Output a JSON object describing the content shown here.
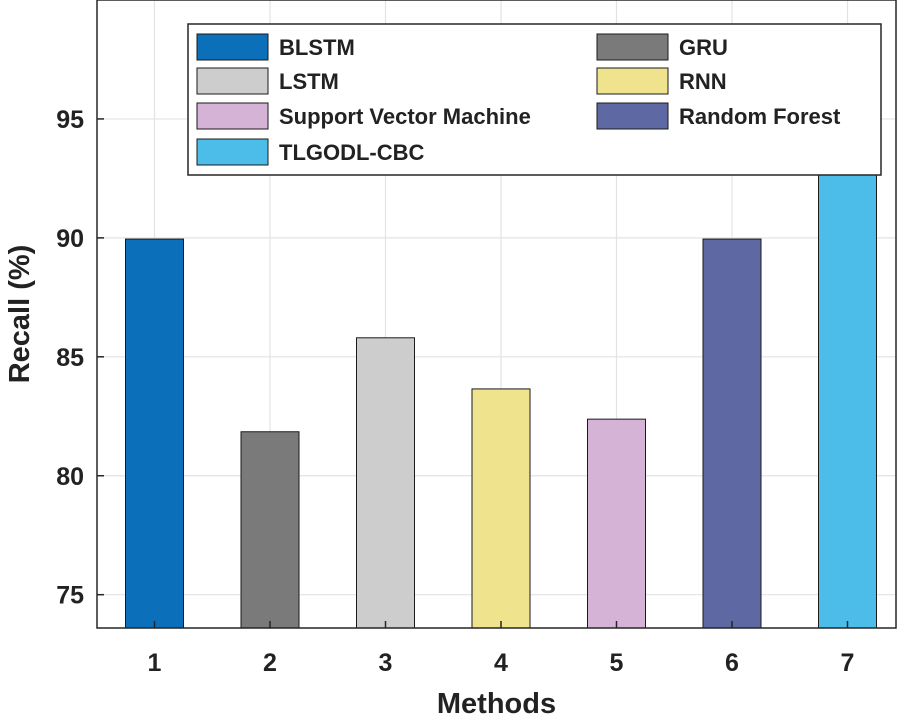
{
  "chart_data": {
    "type": "bar",
    "categories": [
      "1",
      "2",
      "3",
      "4",
      "5",
      "6",
      "7"
    ],
    "values": [
      89.95,
      81.85,
      85.8,
      83.65,
      82.38,
      89.95,
      92.65
    ],
    "bar_colors": [
      "#0b6fba",
      "#7a7a7a",
      "#cdcdcd",
      "#efe38e",
      "#d5b3d6",
      "#5e68a2",
      "#4cbde9"
    ],
    "legend": [
      {
        "label": "BLSTM",
        "color": "#0b6fba"
      },
      {
        "label": "GRU",
        "color": "#7a7a7a"
      },
      {
        "label": "LSTM",
        "color": "#cdcdcd"
      },
      {
        "label": "RNN",
        "color": "#efe38e"
      },
      {
        "label": "Support Vector Machine",
        "color": "#d5b3d6"
      },
      {
        "label": "Random Forest",
        "color": "#5e68a2"
      },
      {
        "label": "TLGODL-CBC",
        "color": "#4cbde9"
      }
    ],
    "legend_placement": "top-right",
    "xlabel": "Methods",
    "ylabel": "Recall (%)",
    "yticks": [
      "75",
      "80",
      "85",
      "90",
      "95"
    ],
    "ytick_values": [
      75,
      80,
      85,
      90,
      95
    ],
    "ylim": [
      73.6,
      100
    ],
    "grid": true
  }
}
